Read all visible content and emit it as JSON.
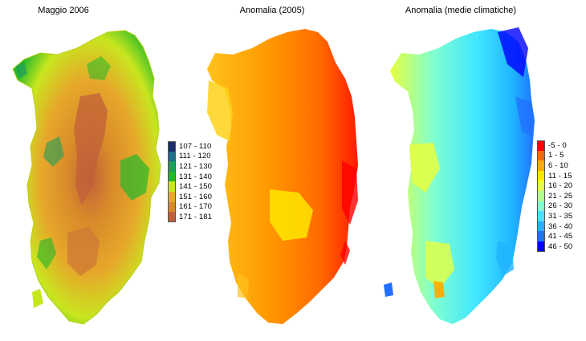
{
  "panels": [
    {
      "title": "Maggio 2006",
      "legend": [
        {
          "label": "107 - 110",
          "color": "#1a2e6e"
        },
        {
          "label": "111 - 120",
          "color": "#1f6e8c"
        },
        {
          "label": "121 - 130",
          "color": "#1f9e5a"
        },
        {
          "label": "131 - 140",
          "color": "#22b82a"
        },
        {
          "label": "141 - 150",
          "color": "#c8e61e"
        },
        {
          "label": "151 - 160",
          "color": "#e6a82a"
        },
        {
          "label": "161 - 170",
          "color": "#d88a2a"
        },
        {
          "label": "171 - 181",
          "color": "#c0603a"
        }
      ]
    },
    {
      "title": "Anomalia (2005)",
      "legend": []
    },
    {
      "title": "Anomalia (medie climatiche)",
      "legend": [
        {
          "label": "-5 - 0",
          "color": "#ff0000"
        },
        {
          "label": "1 - 5",
          "color": "#ff6a00"
        },
        {
          "label": "6 - 10",
          "color": "#ffaa00"
        },
        {
          "label": "11 - 15",
          "color": "#ffe600"
        },
        {
          "label": "16 - 20",
          "color": "#e6ff40"
        },
        {
          "label": "21 - 25",
          "color": "#b4ff8c"
        },
        {
          "label": "26 - 30",
          "color": "#80ffd0"
        },
        {
          "label": "31 - 35",
          "color": "#40e6ff"
        },
        {
          "label": "36 - 40",
          "color": "#20b4ff"
        },
        {
          "label": "41 - 45",
          "color": "#2070ff"
        },
        {
          "label": "46 - 50",
          "color": "#0000ff"
        }
      ]
    }
  ]
}
